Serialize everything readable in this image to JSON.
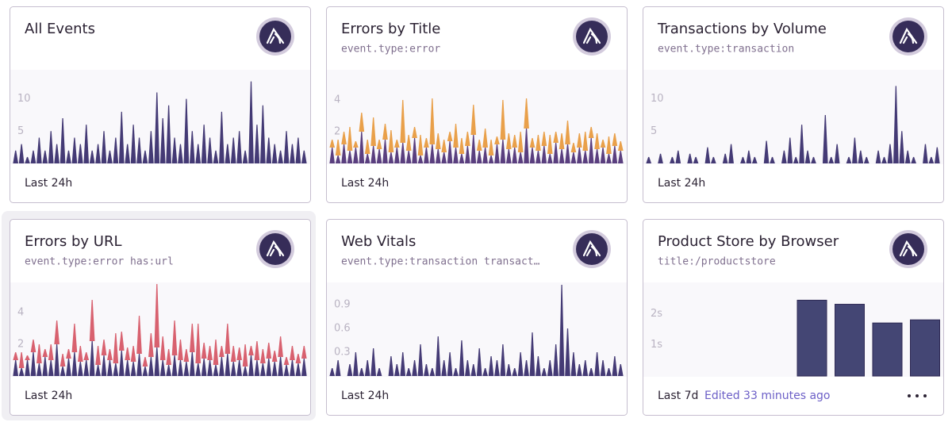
{
  "cards": [
    {
      "title": "All Events",
      "footer": "Last 24h",
      "chart": {
        "type": "spike",
        "ylim": [
          0,
          14.5
        ],
        "yticks": [
          5,
          10
        ],
        "series": [
          {
            "color": "#443a75",
            "values": [
              2,
              3,
              1,
              2,
              4,
              2,
              5,
              3,
              7,
              2,
              4,
              3,
              6,
              2,
              3,
              5,
              2,
              4,
              8,
              3,
              6,
              4,
              2,
              5,
              11,
              7,
              9,
              4,
              3,
              10,
              5,
              3,
              6,
              4,
              2,
              8,
              3,
              4,
              5,
              2,
              12.7,
              6,
              9,
              4,
              3,
              2,
              5,
              3,
              4,
              2
            ]
          }
        ]
      }
    },
    {
      "title": "Errors by Title",
      "query": "event.type:error",
      "footer": "Last 24h",
      "chart": {
        "type": "spike",
        "ylim": [
          0,
          5.9
        ],
        "yticks": [
          2,
          4
        ],
        "series": [
          {
            "color": "#5a3f7f",
            "values": [
              1,
              0.5,
              1.2,
              0.8,
              1,
              2,
              0.6,
              1.1,
              0.9,
              1.5,
              0.7,
              1,
              1.3,
              0.8,
              1.6,
              0.5,
              1,
              1.2,
              0.9,
              0.7,
              1.4,
              1,
              0.6,
              1.1,
              1.8,
              0.8,
              1,
              0.5,
              1.2,
              1.5,
              0.9,
              1,
              0.7,
              2.2,
              1,
              0.8,
              1.1,
              0.6,
              1.3,
              0.9,
              1.2,
              0.7,
              1,
              0.8,
              1.6,
              0.9,
              1,
              0.6,
              1.1,
              0.8
            ]
          },
          {
            "color": "#e9a04a",
            "values": [
              0.5,
              1,
              0.8,
              1.5,
              0.4,
              1.2,
              0.9,
              1.8,
              0.6,
              1,
              1.4,
              0.5,
              2.7,
              1,
              0.7,
              1.3,
              0.6,
              2.9,
              1,
              0.8,
              0.6,
              1.5,
              1,
              0.9,
              1.9,
              0.7,
              1.2,
              1,
              0.5,
              2.5,
              1,
              0.8,
              1.3,
              1.9,
              0.6,
              1,
              0.9,
              1.2,
              0.7,
              1,
              1.5,
              0.6,
              0.9,
              1.2,
              0.7,
              1,
              0.5,
              1.1,
              0.8,
              0.6
            ]
          }
        ]
      }
    },
    {
      "title": "Transactions by Volume",
      "query": "event.type:transaction",
      "footer": "Last 24h",
      "chart": {
        "type": "spike",
        "ylim": [
          0,
          14.5
        ],
        "yticks": [
          5,
          10
        ],
        "series": [
          {
            "color": "#443a75",
            "values": [
              1,
              0,
              1.5,
              0,
              1,
              2,
              0,
              1.5,
              1,
              0,
              2.5,
              1,
              0,
              1.5,
              3,
              0,
              1,
              2,
              1,
              0,
              3.5,
              1,
              0,
              2,
              4,
              1,
              6,
              2,
              1,
              0,
              7.5,
              1,
              3,
              0,
              1,
              4,
              2,
              1,
              0,
              2,
              1,
              3,
              12,
              5,
              2,
              1,
              0,
              3,
              1,
              2.5
            ]
          }
        ]
      }
    },
    {
      "title": "Errors by URL",
      "query": "event.type:error has:url",
      "footer": "Last 24h",
      "chart": {
        "type": "spike",
        "ylim": [
          0,
          5.9
        ],
        "yticks": [
          2,
          4
        ],
        "series": [
          {
            "color": "#443a75",
            "values": [
              1,
              0.5,
              1,
              1.5,
              0.8,
              1.2,
              1,
              2,
              0.6,
              1.1,
              1.5,
              0.9,
              1,
              2.2,
              0.7,
              1.3,
              1,
              0.8,
              1.6,
              1,
              0.9,
              1.4,
              0.6,
              1.2,
              1.8,
              1,
              0.7,
              1.3,
              1,
              0.9,
              1.5,
              0.8,
              1.1,
              1,
              0.7,
              1.2,
              1.4,
              0.9,
              1,
              0.6,
              1.3,
              1,
              0.8,
              1.1,
              0.9,
              1.2,
              0.7,
              1,
              0.8,
              1.1
            ]
          },
          {
            "color": "#d8616f",
            "values": [
              0.5,
              1,
              0.3,
              0.8,
              1.2,
              0.5,
              1,
              1.5,
              0.8,
              0.6,
              1.8,
              1,
              0.5,
              2.6,
              1.2,
              1,
              0.7,
              1.9,
              1.2,
              0.8,
              1,
              2.4,
              0.6,
              1.5,
              4,
              1.5,
              1,
              2.2,
              1.3,
              0.8,
              1.8,
              2.5,
              1,
              0.9,
              1.6,
              0.7,
              1.9,
              1,
              0.8,
              1.4,
              0.6,
              1.2,
              0.9,
              1,
              0.7,
              1.3,
              0.5,
              0.9,
              0.6,
              0.8
            ]
          }
        ]
      }
    },
    {
      "title": "Web Vitals",
      "query": "event.type:transaction transact…",
      "footer": "Last 24h",
      "chart": {
        "type": "spike",
        "ylim": [
          0,
          1.18
        ],
        "yticks": [
          0.3,
          0.6,
          0.9
        ],
        "series": [
          {
            "color": "#443a75",
            "values": [
              0.1,
              0.2,
              0,
              0.15,
              0.3,
              0.1,
              0.2,
              0.35,
              0.1,
              0,
              0.25,
              0.15,
              0.3,
              0.1,
              0.2,
              0.4,
              0.15,
              0.1,
              0.5,
              0.2,
              0.3,
              0.1,
              0.45,
              0.2,
              0.15,
              0.35,
              0.1,
              0.25,
              0.2,
              0.4,
              0.15,
              0.1,
              0.3,
              0.2,
              0.55,
              0.25,
              0.1,
              0.2,
              0.4,
              1.15,
              0.6,
              0.3,
              0.15,
              0.2,
              0.1,
              0.3,
              0.2,
              0.1,
              0.25,
              0.15
            ]
          }
        ]
      }
    },
    {
      "title": "Product Store by Browser",
      "query": "title:/productstore",
      "footer": "Last 7d",
      "edited": "Edited 33 minutes ago",
      "chart": {
        "type": "column",
        "ylim": [
          0,
          3
        ],
        "yticks": [
          {
            "value": 1,
            "label": "1s"
          },
          {
            "value": 2,
            "label": "2s"
          }
        ],
        "categories": [
          null,
          null,
          null,
          null
        ],
        "series": [
          {
            "color": "#444674",
            "values": [
              2.43,
              2.3,
              1.7,
              1.8
            ]
          }
        ]
      }
    }
  ]
}
